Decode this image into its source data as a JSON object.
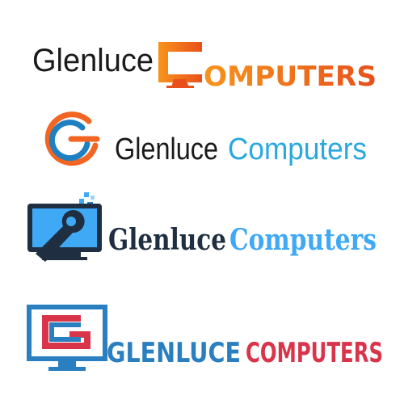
{
  "logos": [
    {
      "word1": "Glenluce",
      "word2": "OMPUTERS",
      "word1_color": "#1a1a1a",
      "orange_light": "#f7941d",
      "orange_dark": "#e8501a"
    },
    {
      "word1": "Glenluce",
      "word2": "Computers",
      "word1_color": "#1a1a1a",
      "word2_color": "#29a8e0",
      "icon_orange": "#f26522",
      "icon_blue": "#1e7fc1"
    },
    {
      "word1": "Glenluce",
      "word2": "Computers",
      "word1_color": "#1f2e40",
      "word2_color": "#3fa9f5",
      "icon_navy": "#1f2e40",
      "icon_blue": "#3fa9f5"
    },
    {
      "word1": "GLENLUCE",
      "word2": "COMPUTERS",
      "word1_color": "#2a7fc1",
      "word2_color": "#d8354a",
      "icon_blue": "#2a7fc1",
      "icon_red": "#d8354a"
    }
  ]
}
